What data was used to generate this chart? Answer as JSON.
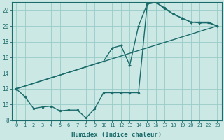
{
  "xlabel": "Humidex (Indice chaleur)",
  "background_color": "#cce8e4",
  "grid_color": "#99ccc8",
  "line_color": "#1a6b6b",
  "xlim": [
    -0.5,
    23.5
  ],
  "ylim": [
    8,
    23
  ],
  "xticks": [
    0,
    1,
    2,
    3,
    4,
    5,
    6,
    7,
    8,
    9,
    10,
    11,
    12,
    13,
    14,
    15,
    16,
    17,
    18,
    19,
    20,
    21,
    22,
    23
  ],
  "yticks": [
    8,
    10,
    12,
    14,
    16,
    18,
    20,
    22
  ],
  "series_jagged_x": [
    0,
    1,
    2,
    3,
    4,
    5,
    6,
    7,
    8,
    9,
    10,
    11,
    12,
    13,
    14,
    15,
    16,
    17,
    18,
    19,
    20,
    21,
    22,
    23
  ],
  "series_jagged_y": [
    12.0,
    11.0,
    9.5,
    9.7,
    9.8,
    9.2,
    9.3,
    9.3,
    8.3,
    9.5,
    11.5,
    11.5,
    11.5,
    11.5,
    11.5,
    22.8,
    23.0,
    22.3,
    21.5,
    21.0,
    20.5,
    20.5,
    20.5,
    20.0
  ],
  "series_curve_x": [
    0,
    10,
    11,
    12,
    13,
    14,
    15,
    16,
    17,
    18,
    19,
    20,
    21,
    22,
    23
  ],
  "series_curve_y": [
    12.0,
    15.5,
    17.2,
    17.5,
    15.0,
    20.0,
    22.8,
    23.0,
    22.2,
    21.5,
    21.0,
    20.5,
    20.4,
    20.4,
    20.0
  ],
  "series_line_x": [
    0,
    23
  ],
  "series_line_y": [
    12.0,
    20.0
  ]
}
